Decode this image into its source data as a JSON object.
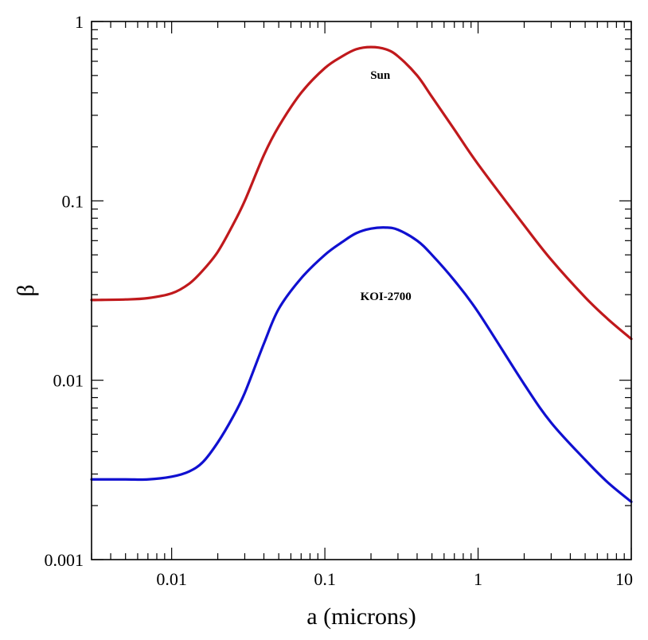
{
  "chart_data": {
    "type": "line",
    "title": "",
    "xlabel": "a (microns)",
    "ylabel": "β",
    "xscale": "log",
    "yscale": "log",
    "xlim": [
      0.003,
      10
    ],
    "ylim": [
      0.001,
      1
    ],
    "grid": false,
    "x_ticks": [
      {
        "value": 0.01,
        "label": "0.01"
      },
      {
        "value": 0.1,
        "label": "0.1"
      },
      {
        "value": 1,
        "label": "1"
      },
      {
        "value": 10,
        "label": "10"
      }
    ],
    "y_ticks": [
      {
        "value": 0.001,
        "label": "0.001"
      },
      {
        "value": 0.01,
        "label": "0.01"
      },
      {
        "value": 0.1,
        "label": "0.1"
      },
      {
        "value": 1,
        "label": "1"
      }
    ],
    "series": [
      {
        "name": "Sun",
        "color": "#c0191c",
        "label_at": [
          0.23,
          0.48
        ],
        "x": [
          0.003,
          0.005,
          0.007,
          0.01,
          0.013,
          0.016,
          0.02,
          0.025,
          0.03,
          0.04,
          0.05,
          0.07,
          0.1,
          0.13,
          0.16,
          0.2,
          0.25,
          0.3,
          0.4,
          0.5,
          0.7,
          1,
          2,
          3,
          5,
          7,
          10
        ],
        "values": [
          0.028,
          0.0282,
          0.0287,
          0.0305,
          0.0345,
          0.041,
          0.052,
          0.073,
          0.1,
          0.18,
          0.26,
          0.4,
          0.55,
          0.64,
          0.7,
          0.72,
          0.7,
          0.64,
          0.5,
          0.38,
          0.25,
          0.16,
          0.073,
          0.047,
          0.029,
          0.022,
          0.017
        ]
      },
      {
        "name": "KOI-2700",
        "color": "#1010d0",
        "label_at": [
          0.25,
          0.028
        ],
        "x": [
          0.003,
          0.005,
          0.007,
          0.01,
          0.013,
          0.016,
          0.02,
          0.025,
          0.03,
          0.04,
          0.05,
          0.07,
          0.1,
          0.13,
          0.16,
          0.2,
          0.25,
          0.3,
          0.4,
          0.5,
          0.7,
          1,
          2,
          3,
          5,
          7,
          10
        ],
        "values": [
          0.0028,
          0.0028,
          0.0028,
          0.0029,
          0.0031,
          0.0035,
          0.0045,
          0.0062,
          0.0085,
          0.016,
          0.025,
          0.037,
          0.05,
          0.059,
          0.066,
          0.07,
          0.071,
          0.069,
          0.06,
          0.05,
          0.036,
          0.024,
          0.0095,
          0.0058,
          0.0036,
          0.0027,
          0.0021
        ]
      }
    ]
  }
}
